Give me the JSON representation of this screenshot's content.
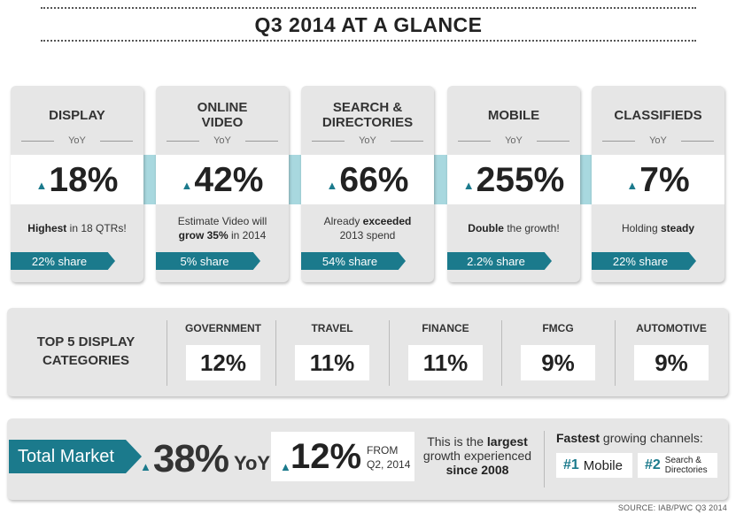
{
  "title": "Q3 2014 AT A GLANCE",
  "colors": {
    "accent": "#1b7a8c",
    "connector": "#a8d8df",
    "panel": "#e6e6e6"
  },
  "yoy_label": "YoY",
  "cards": [
    {
      "title": "DISPLAY",
      "value": "18%",
      "desc_bold": "Highest",
      "desc_rest": "in 18 QTRs!",
      "share": "22% share"
    },
    {
      "title": "ONLINE VIDEO",
      "value": "42%",
      "desc_line1": "Estimate Video will",
      "desc_bold": "grow 35%",
      "desc_rest": "in 2014",
      "share": "5% share"
    },
    {
      "title": "SEARCH & DIRECTORIES",
      "value": "66%",
      "desc_pre": "Already",
      "desc_bold": "exceeded",
      "desc_line2": "2013 spend",
      "share": "54% share"
    },
    {
      "title": "MOBILE",
      "value": "255%",
      "desc_bold": "Double",
      "desc_rest": "the growth!",
      "share": "2.2% share"
    },
    {
      "title": "CLASSIFIEDS",
      "value": "7%",
      "desc_pre": "Holding",
      "desc_bold": "steady",
      "share": "22% share"
    }
  ],
  "top5": {
    "label": "TOP 5 DISPLAY CATEGORIES",
    "categories": [
      {
        "name": "GOVERNMENT",
        "value": "12%"
      },
      {
        "name": "TRAVEL",
        "value": "11%"
      },
      {
        "name": "FINANCE",
        "value": "11%"
      },
      {
        "name": "FMCG",
        "value": "9%"
      },
      {
        "name": "AUTOMOTIVE",
        "value": "9%"
      }
    ]
  },
  "total": {
    "label": "Total Market",
    "value": "38%",
    "yoy": "YoY",
    "q2_value": "12%",
    "q2_from_1": "FROM",
    "q2_from_2": "Q2, 2014",
    "largest_pre": "This is the",
    "largest_bold": "largest",
    "largest_mid": "growth experienced",
    "largest_bold2": "since 2008",
    "fastest_bold": "Fastest",
    "fastest_rest": "growing channels:",
    "ch1_rank": "#1",
    "ch1_name": "Mobile",
    "ch2_rank": "#2",
    "ch2_name_1": "Search &",
    "ch2_name_2": "Directories"
  },
  "source": "SOURCE: IAB/PWC Q3 2014"
}
